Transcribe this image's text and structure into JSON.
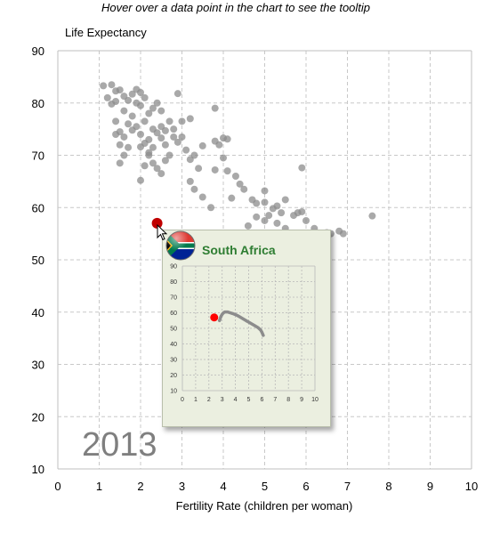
{
  "instruction": "Hover over a data point in the chart to see the tooltip",
  "chart_data": {
    "type": "scatter",
    "title": "",
    "xlabel": "Fertility Rate (children per woman)",
    "ylabel": "Life Expectancy",
    "xlim": [
      0,
      10
    ],
    "ylim": [
      10,
      90
    ],
    "x_ticks": [
      0,
      1,
      2,
      3,
      4,
      5,
      6,
      7,
      8,
      9,
      10
    ],
    "y_ticks": [
      10,
      20,
      30,
      40,
      50,
      60,
      70,
      80,
      90
    ],
    "grid": true,
    "year": "2013",
    "point_color": "#8c8c8c",
    "highlight_color": "#c00000",
    "highlight": {
      "name": "South Africa",
      "x": 2.4,
      "y": 57
    },
    "points": [
      [
        1.1,
        83.3
      ],
      [
        1.3,
        83.5
      ],
      [
        1.2,
        81
      ],
      [
        1.4,
        82.3
      ],
      [
        1.4,
        80.3
      ],
      [
        1.3,
        79.8
      ],
      [
        1.5,
        82.5
      ],
      [
        1.6,
        81.3
      ],
      [
        1.7,
        80.5
      ],
      [
        1.8,
        81.7
      ],
      [
        1.9,
        82.6
      ],
      [
        2.0,
        82
      ],
      [
        2.1,
        81
      ],
      [
        1.9,
        80
      ],
      [
        2.0,
        79.5
      ],
      [
        1.6,
        78.5
      ],
      [
        1.8,
        77.5
      ],
      [
        1.7,
        76
      ],
      [
        1.4,
        76.5
      ],
      [
        1.5,
        74.5
      ],
      [
        1.6,
        73.5
      ],
      [
        1.4,
        74
      ],
      [
        1.5,
        72
      ],
      [
        1.7,
        71.5
      ],
      [
        1.6,
        70
      ],
      [
        1.5,
        68.5
      ],
      [
        1.8,
        74.8
      ],
      [
        1.9,
        75.5
      ],
      [
        2.0,
        74
      ],
      [
        2.1,
        76.5
      ],
      [
        2.2,
        78
      ],
      [
        2.3,
        79
      ],
      [
        2.4,
        80
      ],
      [
        2.5,
        78.5
      ],
      [
        2.3,
        75
      ],
      [
        2.4,
        74.3
      ],
      [
        2.5,
        75.5
      ],
      [
        2.2,
        73
      ],
      [
        2.1,
        72.3
      ],
      [
        2.3,
        71.5
      ],
      [
        2.5,
        73.3
      ],
      [
        2.6,
        74.7
      ],
      [
        2.7,
        76.5
      ],
      [
        2.8,
        75
      ],
      [
        2.6,
        72
      ],
      [
        2.8,
        73.5
      ],
      [
        2.9,
        72.5
      ],
      [
        3.0,
        76.5
      ],
      [
        2.9,
        81.8
      ],
      [
        3.2,
        77
      ],
      [
        2.0,
        71.6
      ],
      [
        2.2,
        70.5
      ],
      [
        2.3,
        68.5
      ],
      [
        2.4,
        67.5
      ],
      [
        2.5,
        66.5
      ],
      [
        2.6,
        69
      ],
      [
        2.7,
        70
      ],
      [
        2.1,
        68
      ],
      [
        2.0,
        65.2
      ],
      [
        2.2,
        70
      ],
      [
        3.0,
        73.5
      ],
      [
        3.1,
        71
      ],
      [
        3.2,
        69.2
      ],
      [
        3.3,
        70
      ],
      [
        3.4,
        67.5
      ],
      [
        3.5,
        71.8
      ],
      [
        3.2,
        65
      ],
      [
        3.3,
        63.5
      ],
      [
        3.5,
        62
      ],
      [
        3.7,
        60
      ],
      [
        3.8,
        72.7
      ],
      [
        3.9,
        72
      ],
      [
        4.0,
        73.3
      ],
      [
        4.1,
        73.1
      ],
      [
        3.8,
        67.2
      ],
      [
        4.0,
        69.5
      ],
      [
        4.1,
        67
      ],
      [
        4.3,
        66
      ],
      [
        3.8,
        79
      ],
      [
        4.2,
        61.8
      ],
      [
        4.4,
        64.5
      ],
      [
        4.5,
        63.5
      ],
      [
        4.7,
        61.5
      ],
      [
        4.8,
        60.8
      ],
      [
        4.6,
        56.5
      ],
      [
        5.0,
        63.2
      ],
      [
        5.0,
        61
      ],
      [
        5.2,
        59.8
      ],
      [
        5.3,
        60.3
      ],
      [
        5.4,
        59
      ],
      [
        5.5,
        61.5
      ],
      [
        5.1,
        58.5
      ],
      [
        5.3,
        57
      ],
      [
        5.5,
        56
      ],
      [
        5.7,
        58.5
      ],
      [
        5.8,
        59
      ],
      [
        5.9,
        59.2
      ],
      [
        6.0,
        57.5
      ],
      [
        6.2,
        56
      ],
      [
        5.6,
        52.5
      ],
      [
        5.7,
        54
      ],
      [
        6.3,
        55
      ],
      [
        6.5,
        55.2
      ],
      [
        6.8,
        55.5
      ],
      [
        6.9,
        55
      ],
      [
        7.6,
        58.4
      ],
      [
        5.9,
        67.6
      ],
      [
        4.8,
        58.2
      ],
      [
        5.0,
        57.5
      ],
      [
        6.6,
        55
      ]
    ]
  },
  "tooltip": {
    "country": "South Africa",
    "flag_icon": "south-africa-flag-icon",
    "mini_x_ticks": [
      0,
      1,
      2,
      3,
      4,
      5,
      6,
      7,
      8,
      9,
      10
    ],
    "mini_y_ticks": [
      10,
      20,
      30,
      40,
      50,
      60,
      70,
      80,
      90
    ],
    "mini_xlim": [
      0,
      10
    ],
    "mini_ylim": [
      10,
      90
    ],
    "trail": [
      [
        6.1,
        45.5
      ],
      [
        6.0,
        47.5
      ],
      [
        5.9,
        49
      ],
      [
        5.7,
        50.5
      ],
      [
        5.5,
        51.5
      ],
      [
        5.3,
        52.5
      ],
      [
        5.0,
        54
      ],
      [
        4.8,
        55
      ],
      [
        4.6,
        56
      ],
      [
        4.4,
        57
      ],
      [
        4.2,
        58
      ],
      [
        4.0,
        58.8
      ],
      [
        3.8,
        59.5
      ],
      [
        3.6,
        60
      ],
      [
        3.4,
        60.5
      ],
      [
        3.2,
        60.5
      ],
      [
        3.1,
        60
      ],
      [
        3.0,
        59
      ],
      [
        2.9,
        57.5
      ],
      [
        2.8,
        55
      ]
    ],
    "current": {
      "x": 2.4,
      "y": 57
    }
  }
}
